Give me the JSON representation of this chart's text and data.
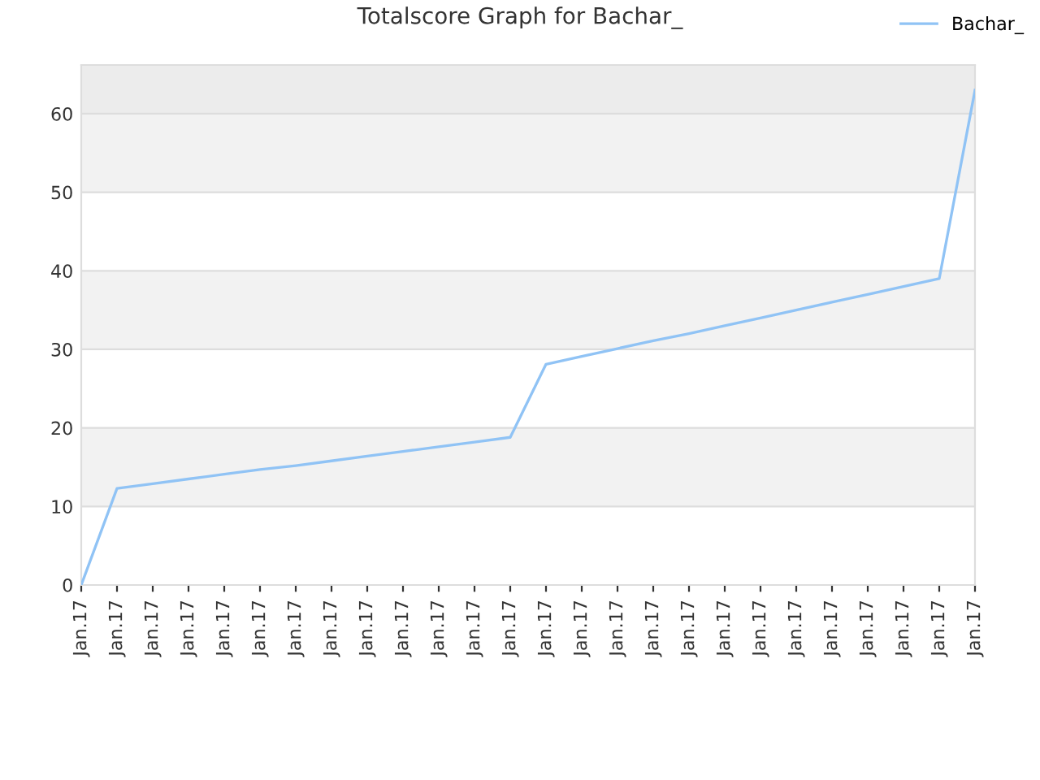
{
  "chart_data": {
    "type": "line",
    "title": "Totalscore Graph for Bachar_",
    "categories": [
      "Jan.17",
      "Jan.17",
      "Jan.17",
      "Jan.17",
      "Jan.17",
      "Jan.17",
      "Jan.17",
      "Jan.17",
      "Jan.17",
      "Jan.17",
      "Jan.17",
      "Jan.17",
      "Jan.17",
      "Jan.17",
      "Jan.17",
      "Jan.17",
      "Jan.17",
      "Jan.17",
      "Jan.17",
      "Jan.17",
      "Jan.17",
      "Jan.17",
      "Jan.17",
      "Jan.17",
      "Jan.17",
      "Jan.17"
    ],
    "series": [
      {
        "name": "Bachar_",
        "color": "#90c3f5",
        "values": [
          0,
          12.3,
          12.9,
          13.5,
          14.1,
          14.7,
          15.2,
          15.8,
          16.4,
          17.0,
          17.6,
          18.2,
          18.8,
          28.1,
          29.1,
          30.1,
          31.1,
          32.0,
          33.0,
          34.0,
          35.0,
          36.0,
          37.0,
          38.0,
          39.0,
          63
        ]
      }
    ],
    "ylim": [
      0,
      66.2
    ],
    "yticks": [
      0,
      10,
      20,
      30,
      40,
      50,
      60
    ],
    "bands": [
      {
        "axis": "y",
        "from": 10,
        "to": 20,
        "color": "#f2f2f2"
      },
      {
        "axis": "y",
        "from": 30,
        "to": 40,
        "color": "#f2f2f2"
      },
      {
        "axis": "y",
        "from": 50,
        "to": 60,
        "color": "#f2f2f2"
      },
      {
        "axis": "y",
        "from": 60,
        "to": 66.2,
        "color": "#ececec"
      }
    ],
    "grid": "y",
    "legend": "top right",
    "marker": "none",
    "line_style": "solid"
  }
}
